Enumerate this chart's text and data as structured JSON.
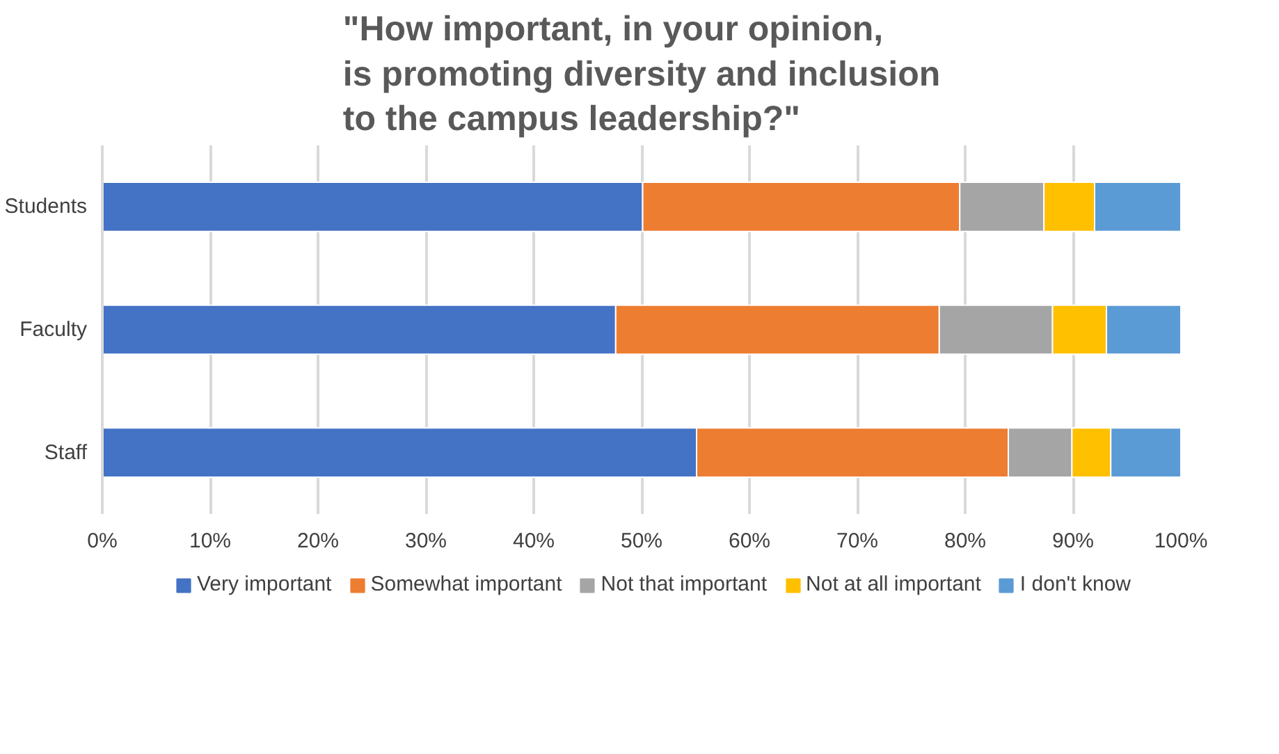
{
  "chart_data": {
    "type": "bar",
    "orientation": "horizontal",
    "stacked": true,
    "title": "\"How important, in your opinion,\nis promoting diversity and inclusion\nto the campus leadership?\"",
    "categories": [
      "Students",
      "Faculty",
      "Staff"
    ],
    "series": [
      {
        "name": "Very important",
        "color": "#4472c4",
        "values": [
          50.1,
          47.6,
          55.1
        ]
      },
      {
        "name": "Somewhat important",
        "color": "#ed7d31",
        "values": [
          29.4,
          30.0,
          28.9
        ]
      },
      {
        "name": "Not that important",
        "color": "#a5a5a5",
        "values": [
          7.8,
          10.5,
          5.9
        ]
      },
      {
        "name": "Not at all important",
        "color": "#ffc000",
        "values": [
          4.7,
          5.0,
          3.6
        ]
      },
      {
        "name": "I don't know",
        "color": "#5b9bd5",
        "values": [
          8.0,
          6.9,
          6.5
        ]
      }
    ],
    "xlim": [
      0,
      100
    ],
    "xticks": [
      {
        "value": 0,
        "label": "0%"
      },
      {
        "value": 10,
        "label": "10%"
      },
      {
        "value": 20,
        "label": "20%"
      },
      {
        "value": 30,
        "label": "30%"
      },
      {
        "value": 40,
        "label": "40%"
      },
      {
        "value": 50,
        "label": "50%"
      },
      {
        "value": 60,
        "label": "60%"
      },
      {
        "value": 70,
        "label": "70%"
      },
      {
        "value": 80,
        "label": "80%"
      },
      {
        "value": 90,
        "label": "90%"
      },
      {
        "value": 100,
        "label": "100%"
      }
    ],
    "grid": "x",
    "legend": "bottom"
  }
}
